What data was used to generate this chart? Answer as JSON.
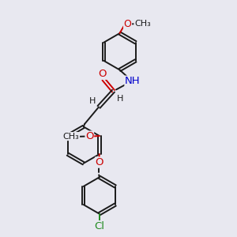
{
  "background_color": "#e8e8f0",
  "bond_color": "#1a1a1a",
  "oxygen_color": "#cc0000",
  "nitrogen_color": "#0000cc",
  "chlorine_color": "#228b22",
  "bond_width": 1.4,
  "fig_width": 3.0,
  "fig_height": 3.0,
  "dpi": 100,
  "xlim": [
    0,
    10
  ],
  "ylim": [
    0,
    10
  ]
}
